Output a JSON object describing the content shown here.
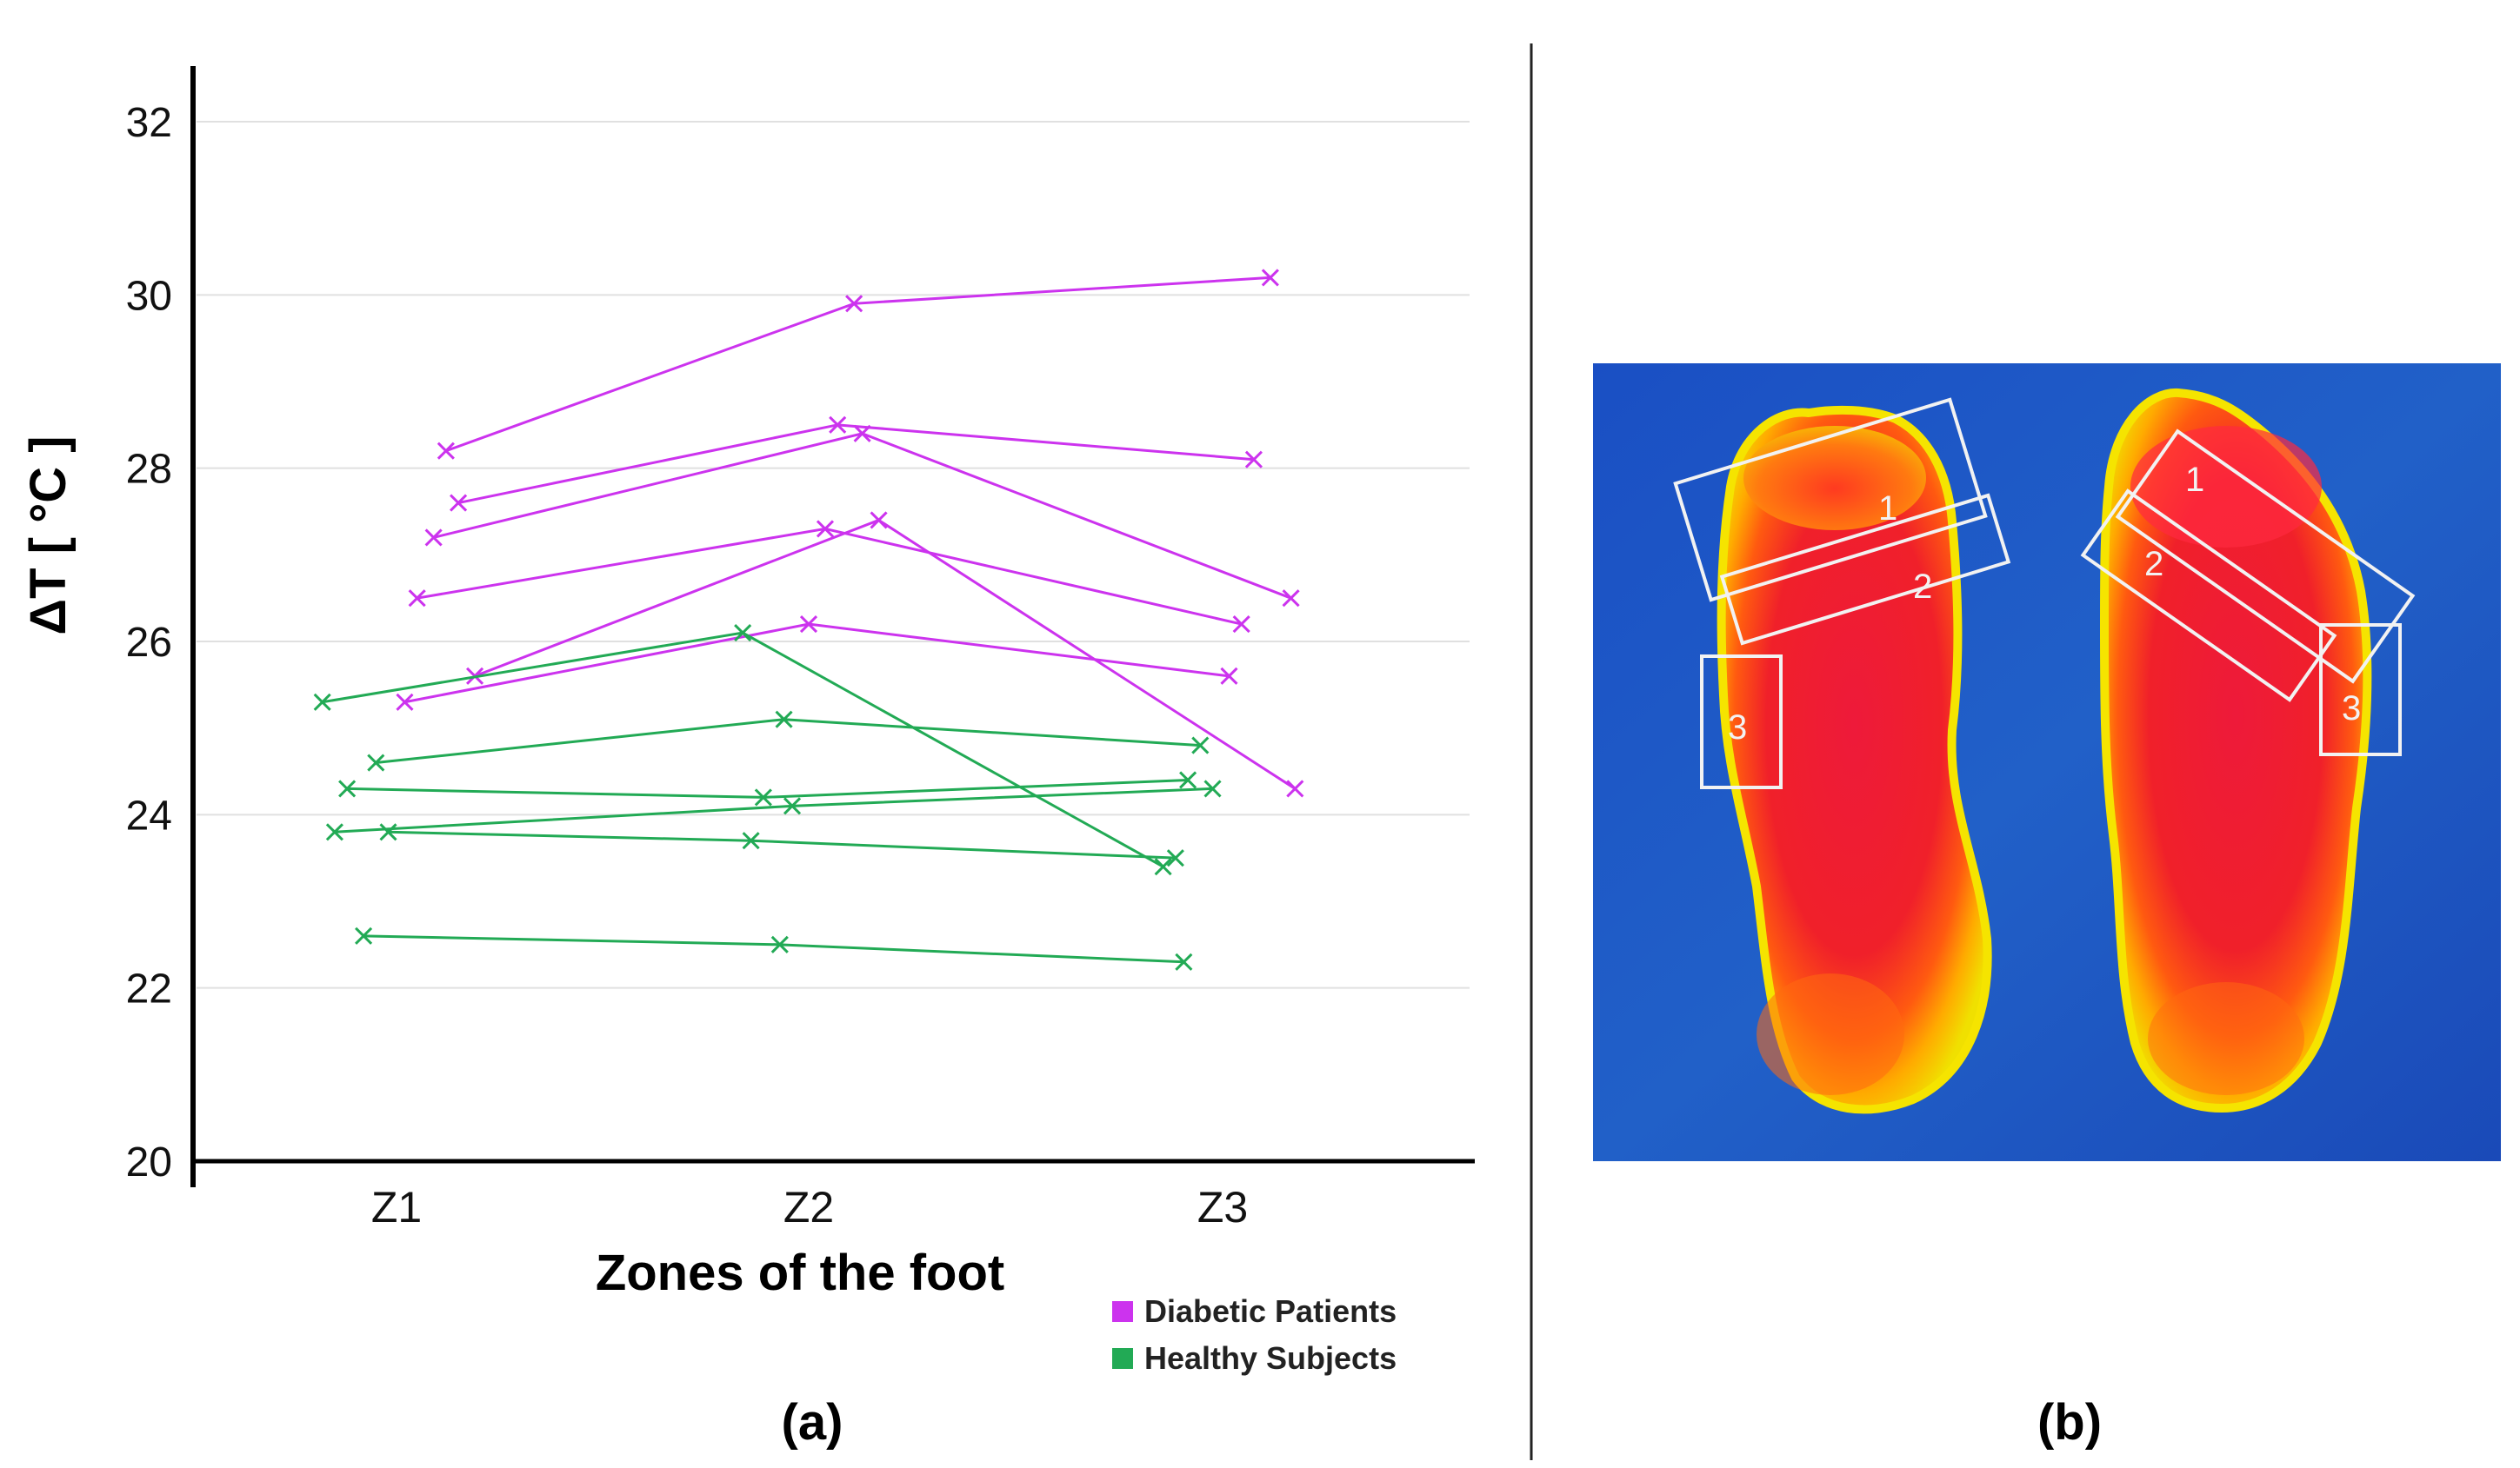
{
  "colors": {
    "diabetic": "#cc33ee",
    "healthy": "#22aa55",
    "grid": "#e0e0e0",
    "axis": "#000000",
    "divider": "#222222",
    "thermal_bg": "#1c55c2",
    "roi_box": "#f2f2f2"
  },
  "chart_data": {
    "type": "line",
    "title": "",
    "xlabel": "Zones of the foot",
    "ylabel": "ΔT  [ °C ]",
    "categories": [
      "Z1",
      "Z2",
      "Z3"
    ],
    "ylim": [
      20,
      32.5
    ],
    "yticks": [
      20,
      22,
      24,
      26,
      28,
      30,
      32
    ],
    "grid": true,
    "legend_position": "bottom-right",
    "legend": [
      "Diabetic Patients",
      "Healthy Subjects"
    ],
    "marker": "x",
    "note": "points are horizontally jittered around each zone; x values are in category units (Z1=1, Z2=2, Z3=3)",
    "series": [
      {
        "group": "Diabetic Patients",
        "x": [
          1.12,
          2.11,
          3.12
        ],
        "values": [
          28.2,
          29.9,
          30.2
        ]
      },
      {
        "group": "Diabetic Patients",
        "x": [
          1.15,
          2.07,
          3.08
        ],
        "values": [
          27.6,
          28.5,
          28.1
        ]
      },
      {
        "group": "Diabetic Patients",
        "x": [
          1.09,
          2.13,
          3.17
        ],
        "values": [
          27.2,
          28.4,
          26.5
        ]
      },
      {
        "group": "Diabetic Patients",
        "x": [
          1.05,
          2.04,
          3.05
        ],
        "values": [
          26.5,
          27.3,
          26.2
        ]
      },
      {
        "group": "Diabetic Patients",
        "x": [
          1.19,
          2.17,
          3.18
        ],
        "values": [
          25.6,
          27.4,
          24.3
        ]
      },
      {
        "group": "Diabetic Patients",
        "x": [
          1.02,
          2.0,
          3.02
        ],
        "values": [
          25.3,
          26.2,
          25.6
        ]
      },
      {
        "group": "Healthy Subjects",
        "x": [
          0.82,
          1.84,
          2.86
        ],
        "values": [
          25.3,
          26.1,
          23.4
        ]
      },
      {
        "group": "Healthy Subjects",
        "x": [
          0.95,
          1.94,
          2.95
        ],
        "values": [
          24.6,
          25.1,
          24.8
        ]
      },
      {
        "group": "Healthy Subjects",
        "x": [
          0.88,
          1.89,
          2.92
        ],
        "values": [
          24.3,
          24.2,
          24.4
        ]
      },
      {
        "group": "Healthy Subjects",
        "x": [
          0.85,
          1.96,
          2.98
        ],
        "values": [
          23.8,
          24.1,
          24.3
        ]
      },
      {
        "group": "Healthy Subjects",
        "x": [
          0.98,
          1.86,
          2.89
        ],
        "values": [
          23.8,
          23.7,
          23.5
        ]
      },
      {
        "group": "Healthy Subjects",
        "x": [
          0.92,
          1.93,
          2.91
        ],
        "values": [
          22.6,
          22.5,
          22.3
        ]
      }
    ]
  },
  "panel_labels": {
    "a": "(a)",
    "b": "(b)"
  },
  "thermal_image": {
    "zone_labels": {
      "left_1": "1",
      "left_2": "2",
      "left_3": "3",
      "right_1": "1",
      "right_2": "2",
      "right_3": "3"
    }
  }
}
